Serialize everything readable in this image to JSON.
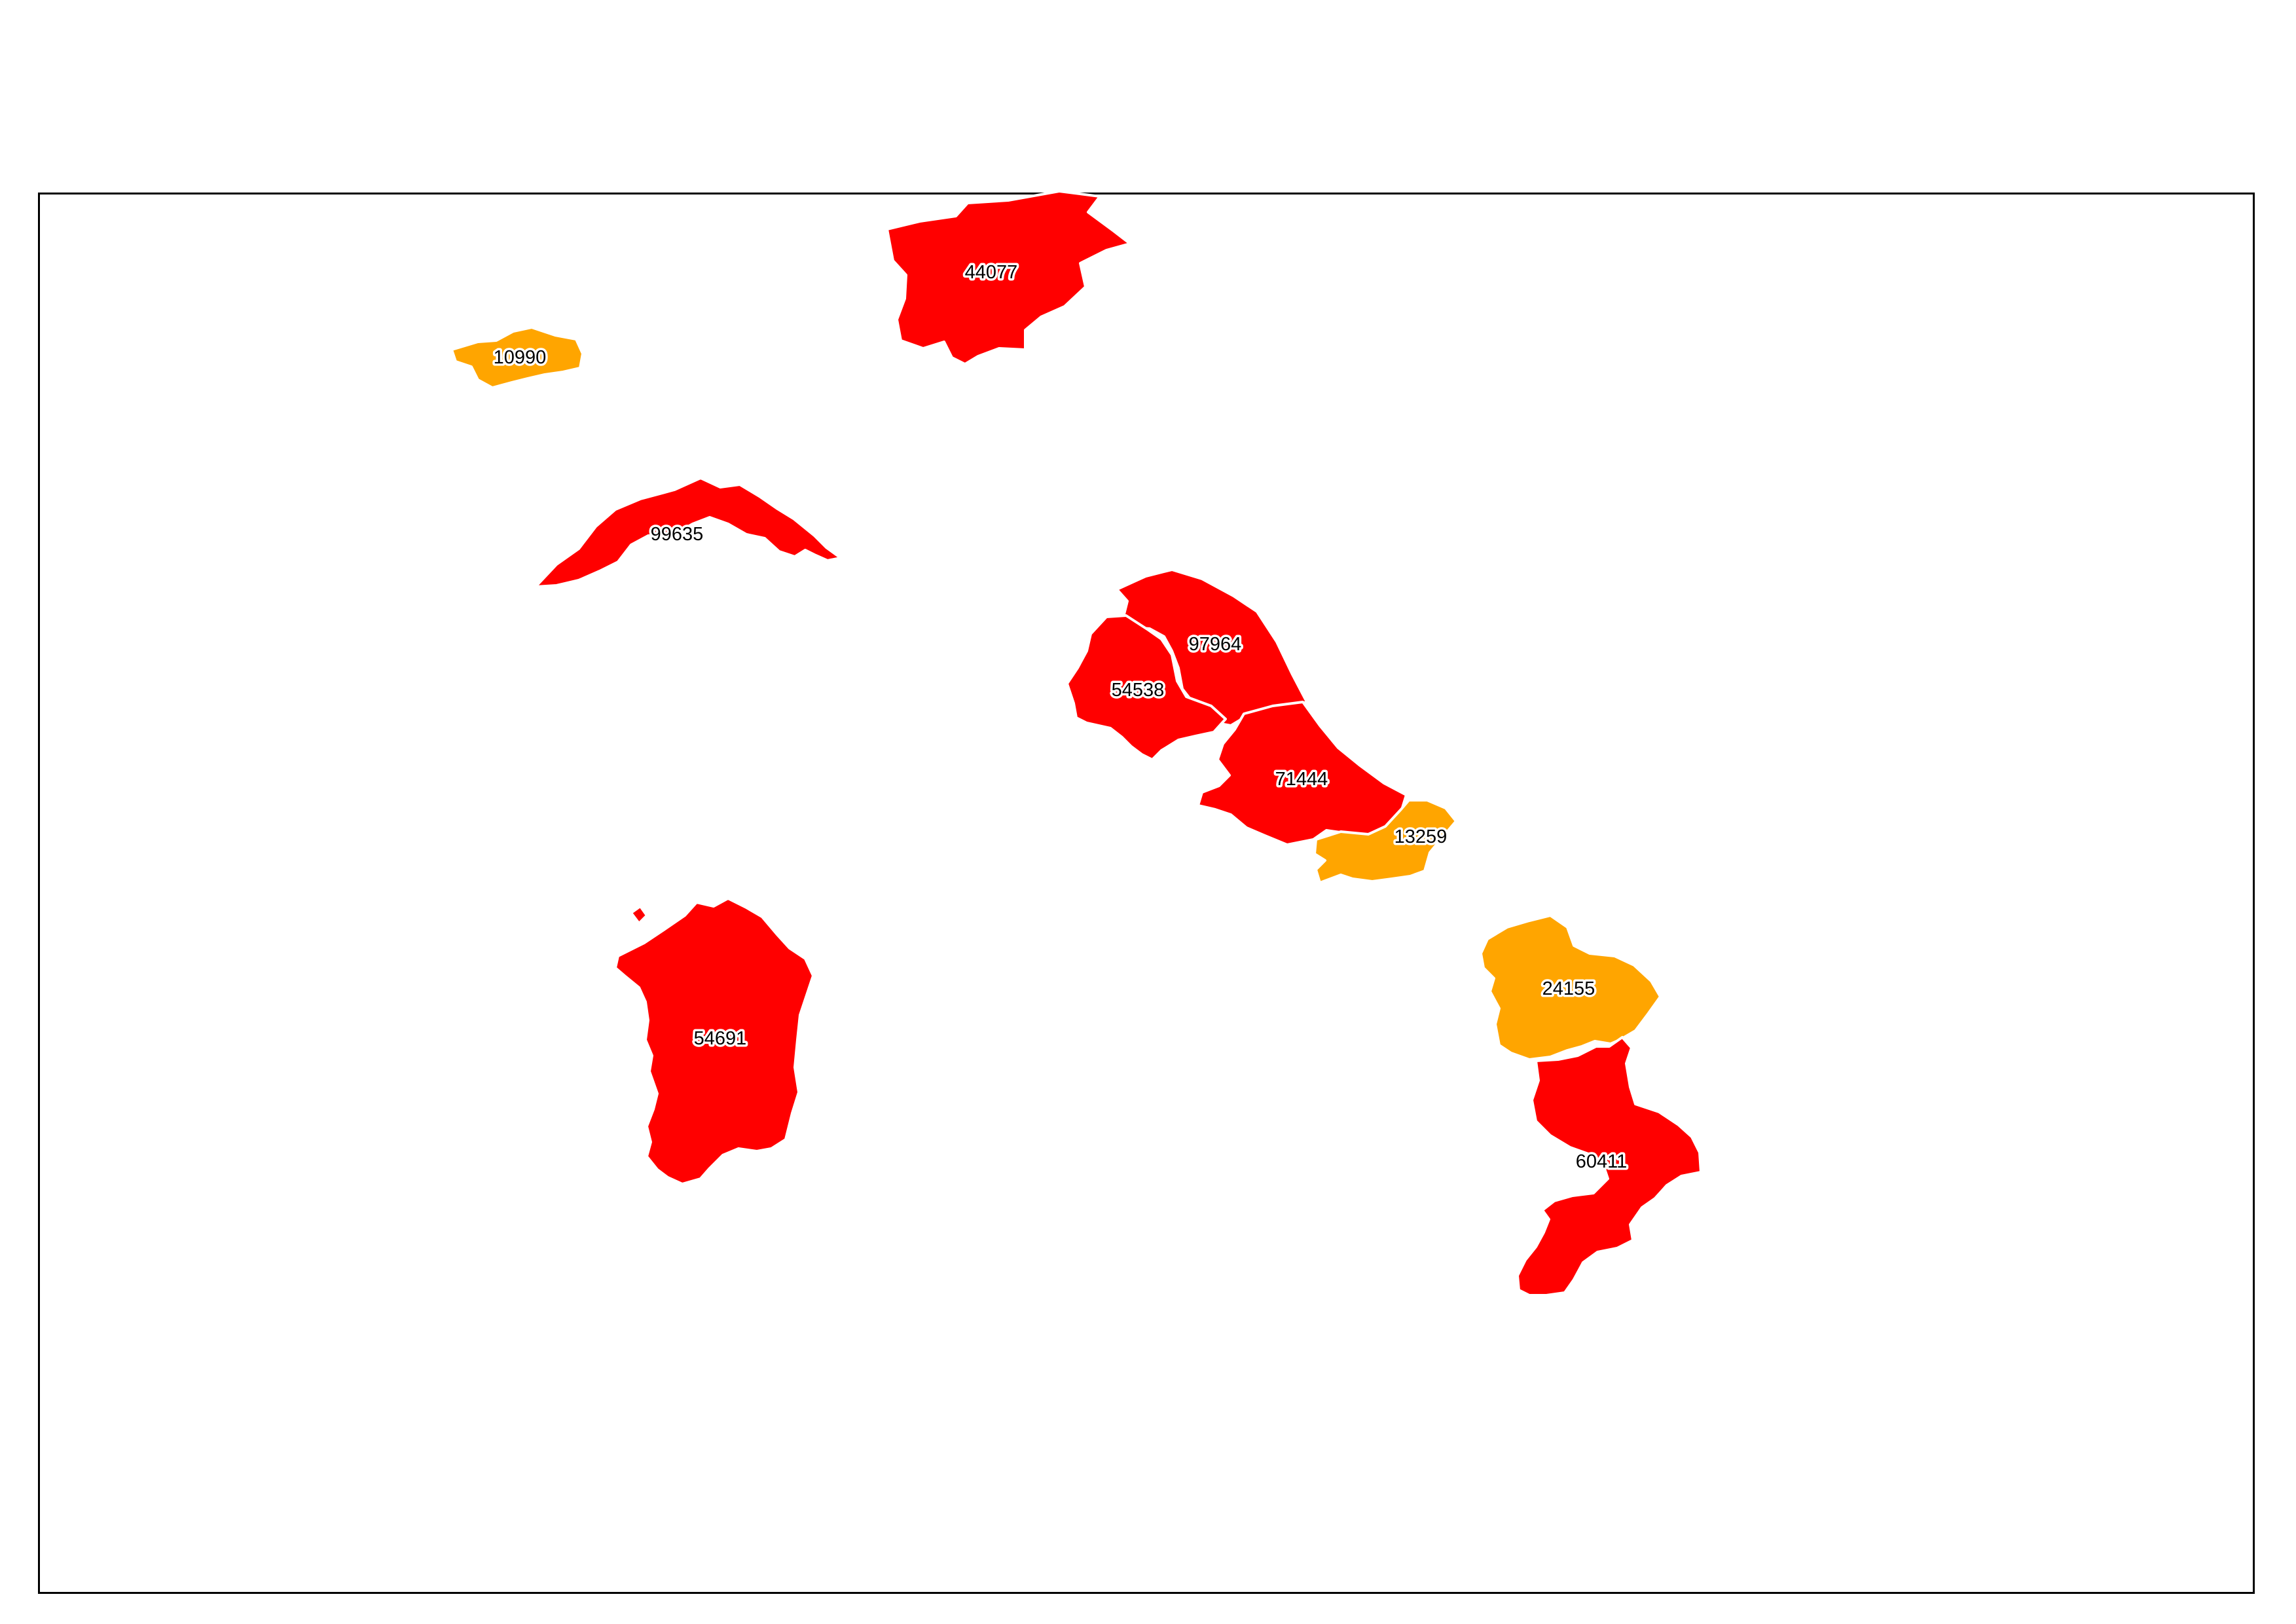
{
  "colors": {
    "high": "#ff0000",
    "mid": "#ffa500",
    "border": "#ffffff",
    "frame": "#000000"
  },
  "regions": [
    {
      "id": "r-44077",
      "label": "44077",
      "level": "high"
    },
    {
      "id": "r-10990",
      "label": "10990",
      "level": "mid"
    },
    {
      "id": "r-99635",
      "label": "99635",
      "level": "high"
    },
    {
      "id": "r-97964",
      "label": "97964",
      "level": "high"
    },
    {
      "id": "r-54538",
      "label": "54538",
      "level": "high"
    },
    {
      "id": "r-71444",
      "label": "71444",
      "level": "high"
    },
    {
      "id": "r-13259",
      "label": "13259",
      "level": "mid"
    },
    {
      "id": "r-54691",
      "label": "54691",
      "level": "high"
    },
    {
      "id": "r-24155",
      "label": "24155",
      "level": "mid"
    },
    {
      "id": "r-60411",
      "label": "60411",
      "level": "high"
    }
  ]
}
